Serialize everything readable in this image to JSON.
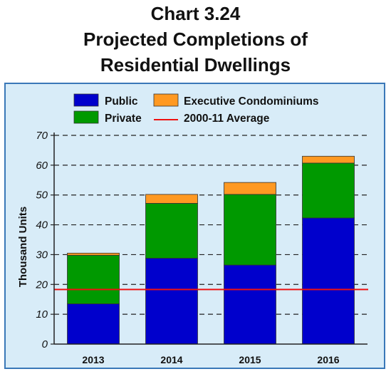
{
  "chart_data": {
    "type": "bar",
    "stacked": true,
    "title": [
      "Chart 3.24",
      "Projected Completions of",
      "Residential Dwellings"
    ],
    "xlabel": "",
    "ylabel": "Thousand Units",
    "categories": [
      "2013",
      "2014",
      "2015",
      "2016"
    ],
    "ylim": [
      0,
      70
    ],
    "yticks": [
      0,
      10,
      20,
      30,
      40,
      50,
      60,
      70
    ],
    "grid": true,
    "legend_position": "top",
    "series": [
      {
        "name": "Public",
        "color": "#0000cc",
        "values": [
          13.5,
          28.8,
          26.5,
          42.3
        ]
      },
      {
        "name": "Private",
        "color": "#009900",
        "values": [
          16.3,
          18.4,
          23.7,
          18.4
        ]
      },
      {
        "name": "Executive Condominiums",
        "color": "#ff9922",
        "values": [
          0.7,
          3.0,
          4.0,
          2.3
        ]
      }
    ],
    "reference_line": {
      "name": "2000-11 Average",
      "value": 18.3,
      "color": "#ee1111"
    },
    "colors": {
      "panel_background": "#d8ecf8",
      "panel_border": "#3a78b8"
    }
  }
}
